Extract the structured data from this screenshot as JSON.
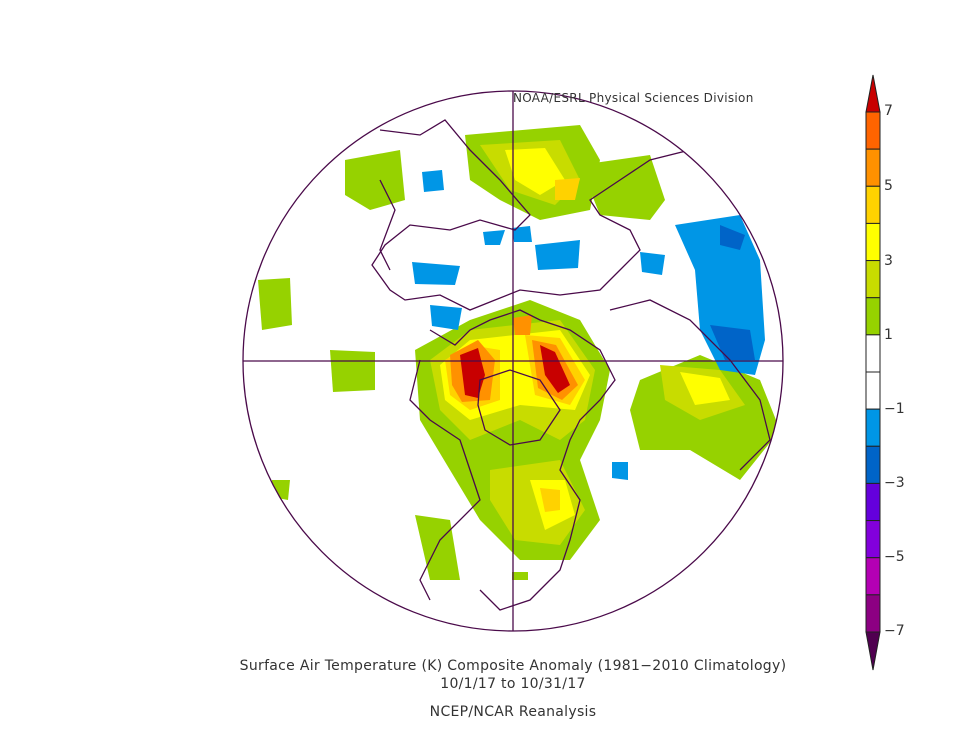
{
  "credit": "NOAA/ESRL Physical Sciences Division",
  "caption": {
    "title": "Surface Air Temperature (K) Composite Anomaly (1981−2010 Climatology)",
    "dates": "10/1/17  to 10/31/17",
    "source": "NCEP/NCAR Reanalysis"
  },
  "colorbar": {
    "ticks": [
      "7",
      "5",
      "3",
      "1",
      "−1",
      "−3",
      "−5",
      "−7"
    ],
    "colors_top_to_bottom": [
      "#c80000",
      "#ff6400",
      "#ff9100",
      "#ffd200",
      "#ffff00",
      "#c8dc00",
      "#96d200",
      "#ffffff",
      "#ffffff",
      "#0096e6",
      "#0064c8",
      "#6400dc",
      "#8200dc",
      "#b400b4",
      "#8c0082",
      "#500050"
    ]
  }
}
